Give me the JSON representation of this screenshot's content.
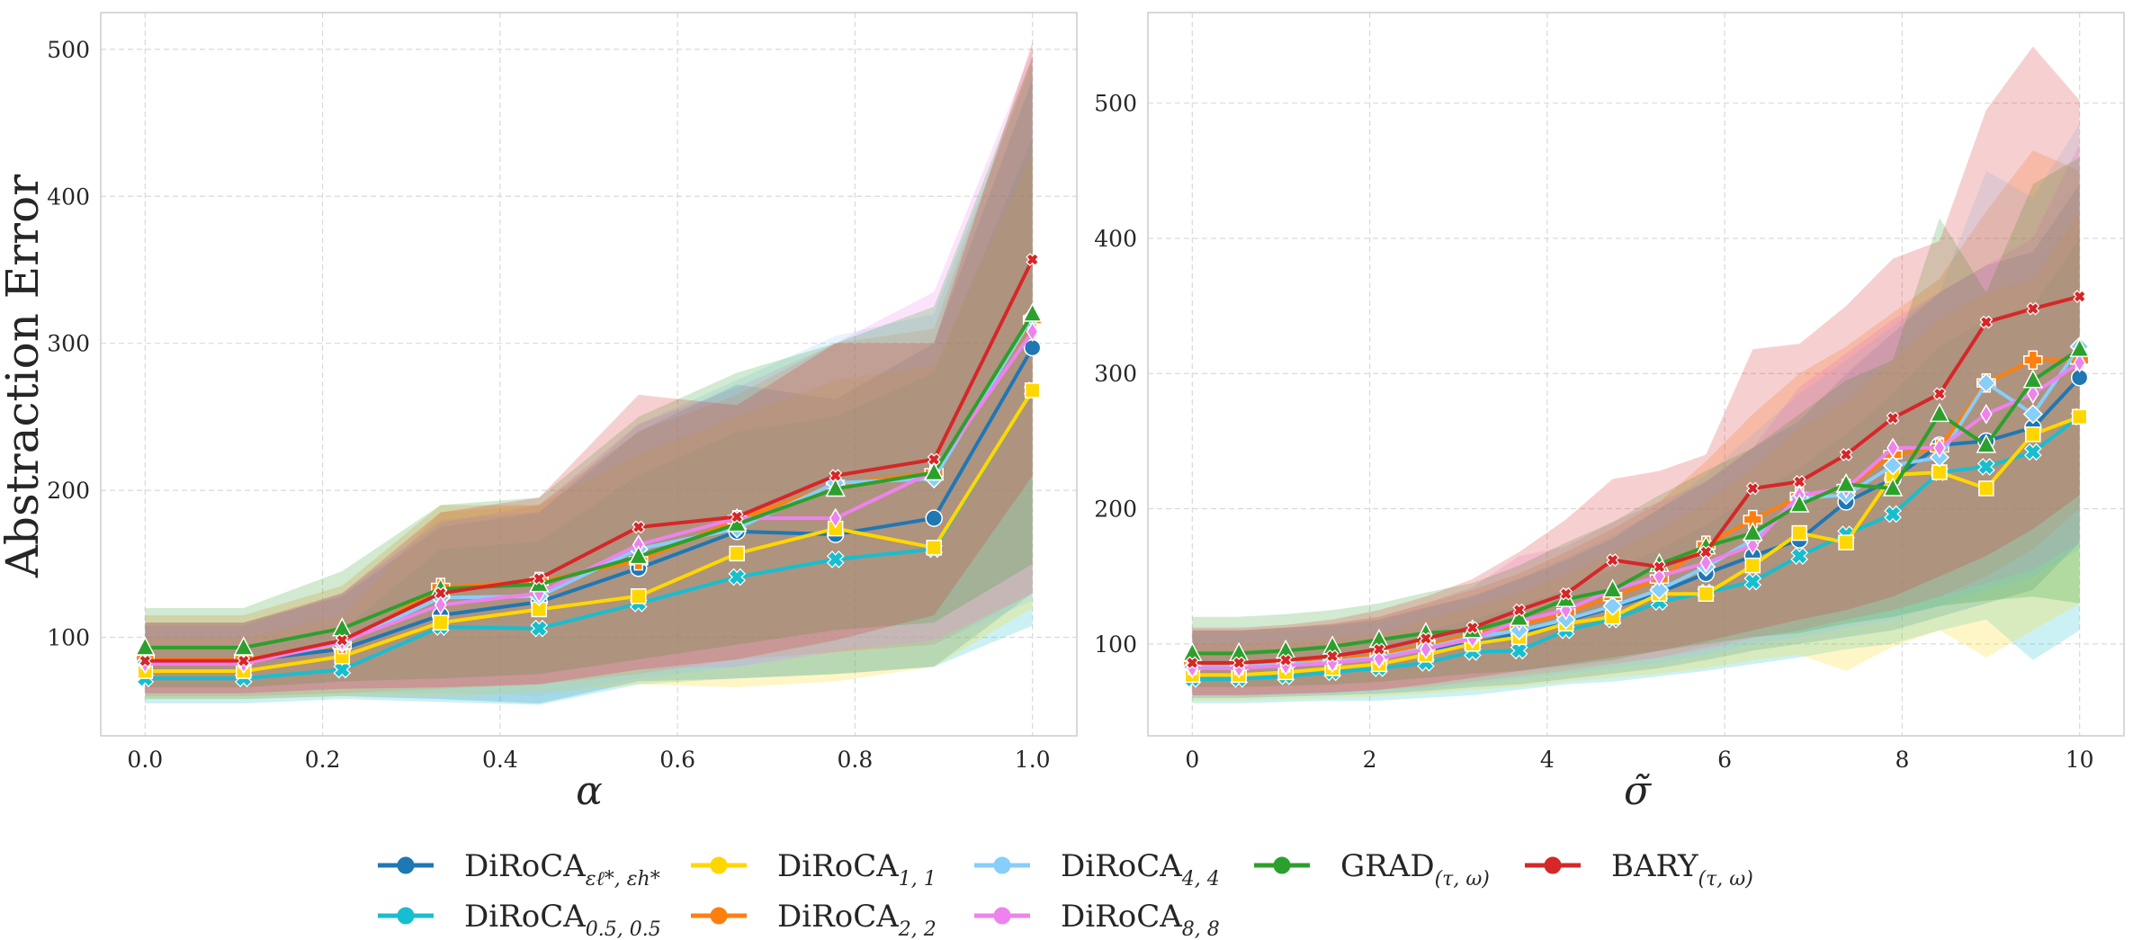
{
  "chart_data": [
    {
      "type": "line",
      "xlabel": "α",
      "ylabel": "Abstraction Error",
      "xlim": [
        -0.05,
        1.05
      ],
      "ylim": [
        33,
        525
      ],
      "xticks": [
        0.0,
        0.2,
        0.4,
        0.6,
        0.8,
        1.0
      ],
      "xtick_labels": [
        "0.0",
        "0.2",
        "0.4",
        "0.6",
        "0.8",
        "1.0"
      ],
      "yticks": [
        100,
        200,
        300,
        400,
        500
      ],
      "ytick_labels": [
        "100",
        "200",
        "300",
        "400",
        "500"
      ],
      "grid": true,
      "x": [
        0.0,
        0.111,
        0.222,
        0.333,
        0.444,
        0.556,
        0.667,
        0.778,
        0.889,
        1.0
      ],
      "series": [
        {
          "key": "diroca_eps",
          "values": [
            84,
            84,
            92,
            115,
            124,
            147,
            172,
            170,
            181,
            297
          ],
          "lower": [
            58,
            58,
            60,
            58,
            55,
            70,
            72,
            75,
            80,
            130
          ],
          "upper": [
            110,
            110,
            128,
            175,
            185,
            240,
            272,
            262,
            300,
            480
          ]
        },
        {
          "key": "diroca_05",
          "values": [
            72,
            72,
            78,
            107,
            106,
            123,
            141,
            153,
            160,
            268
          ],
          "lower": [
            55,
            55,
            58,
            56,
            54,
            68,
            72,
            75,
            80,
            108
          ],
          "upper": [
            95,
            95,
            105,
            160,
            165,
            210,
            240,
            250,
            280,
            440
          ]
        },
        {
          "key": "diroca_11",
          "values": [
            77,
            77,
            87,
            110,
            119,
            128,
            157,
            174,
            161,
            268
          ],
          "lower": [
            58,
            58,
            60,
            60,
            62,
            68,
            66,
            70,
            80,
            120
          ],
          "upper": [
            100,
            100,
            115,
            185,
            190,
            225,
            250,
            275,
            285,
            430
          ]
        },
        {
          "key": "diroca_22",
          "values": [
            85,
            85,
            95,
            134,
            138,
            152,
            180,
            204,
            212,
            316
          ],
          "lower": [
            60,
            60,
            62,
            65,
            68,
            75,
            85,
            90,
            95,
            130
          ],
          "upper": [
            115,
            115,
            135,
            190,
            190,
            240,
            265,
            300,
            310,
            495
          ]
        },
        {
          "key": "diroca_44",
          "values": [
            83,
            83,
            96,
            127,
            128,
            160,
            174,
            205,
            208,
            318
          ],
          "lower": [
            60,
            60,
            62,
            62,
            60,
            72,
            80,
            92,
            95,
            125
          ],
          "upper": [
            108,
            108,
            130,
            180,
            185,
            245,
            275,
            305,
            320,
            490
          ]
        },
        {
          "key": "diroca_88",
          "values": [
            82,
            82,
            97,
            122,
            130,
            163,
            181,
            181,
            213,
            308
          ],
          "lower": [
            62,
            62,
            65,
            66,
            68,
            78,
            80,
            90,
            98,
            130
          ],
          "upper": [
            108,
            108,
            130,
            178,
            190,
            245,
            270,
            300,
            335,
            500
          ]
        },
        {
          "key": "grad",
          "values": [
            93,
            93,
            106,
            133,
            136,
            155,
            177,
            201,
            212,
            320
          ],
          "lower": [
            66,
            66,
            70,
            72,
            75,
            85,
            95,
            105,
            110,
            150
          ],
          "upper": [
            120,
            120,
            145,
            190,
            195,
            250,
            280,
            300,
            325,
            495
          ]
        },
        {
          "key": "bary",
          "values": [
            84,
            84,
            98,
            130,
            140,
            175,
            182,
            210,
            221,
            357
          ],
          "lower": [
            62,
            62,
            65,
            66,
            68,
            78,
            85,
            98,
            115,
            210
          ],
          "upper": [
            110,
            110,
            130,
            185,
            195,
            265,
            258,
            300,
            300,
            505
          ]
        }
      ]
    },
    {
      "type": "line",
      "xlabel": "σ̃",
      "ylabel": "",
      "xlim": [
        -0.5,
        10.5
      ],
      "ylim": [
        32,
        567
      ],
      "xticks": [
        0,
        2,
        4,
        6,
        8,
        10
      ],
      "xtick_labels": [
        "0",
        "2",
        "4",
        "6",
        "8",
        "10"
      ],
      "yticks": [
        100,
        200,
        300,
        400,
        500
      ],
      "ytick_labels": [
        "100",
        "200",
        "300",
        "400",
        "500"
      ],
      "grid": true,
      "x": [
        0,
        0.526,
        1.053,
        1.579,
        2.105,
        2.632,
        3.158,
        3.684,
        4.211,
        4.737,
        5.263,
        5.789,
        6.316,
        6.842,
        7.368,
        7.895,
        8.421,
        8.947,
        9.474,
        10.0
      ],
      "series": [
        {
          "key": "diroca_eps",
          "values": [
            84,
            84,
            85,
            87,
            89,
            96,
            100,
            108,
            117,
            127,
            138,
            152,
            165,
            177,
            205,
            222,
            247,
            250,
            260,
            297
          ],
          "lower": [
            60,
            60,
            61,
            62,
            63,
            65,
            68,
            70,
            74,
            78,
            82,
            88,
            95,
            100,
            105,
            110,
            120,
            130,
            140,
            175
          ],
          "upper": [
            110,
            110,
            112,
            114,
            118,
            127,
            135,
            148,
            162,
            178,
            200,
            220,
            245,
            265,
            300,
            330,
            360,
            380,
            390,
            440
          ]
        },
        {
          "key": "diroca_05",
          "values": [
            74,
            74,
            76,
            79,
            82,
            86,
            94,
            95,
            110,
            118,
            131,
            138,
            146,
            165,
            181,
            196,
            227,
            231,
            242,
            268
          ],
          "lower": [
            56,
            56,
            57,
            58,
            58,
            60,
            62,
            66,
            70,
            72,
            76,
            80,
            85,
            90,
            96,
            100,
            110,
            118,
            88,
            110
          ],
          "upper": [
            95,
            95,
            97,
            100,
            104,
            110,
            118,
            128,
            140,
            155,
            170,
            188,
            210,
            230,
            255,
            285,
            320,
            340,
            350,
            400
          ]
        },
        {
          "key": "diroca_11",
          "values": [
            77,
            77,
            79,
            82,
            85,
            92,
            100,
            105,
            115,
            120,
            137,
            137,
            158,
            182,
            175,
            225,
            227,
            215,
            255,
            268
          ],
          "lower": [
            58,
            58,
            59,
            60,
            61,
            63,
            66,
            68,
            72,
            75,
            78,
            82,
            88,
            92,
            80,
            98,
            110,
            90,
            110,
            130
          ],
          "upper": [
            100,
            100,
            102,
            105,
            108,
            118,
            128,
            138,
            152,
            168,
            185,
            205,
            230,
            260,
            280,
            310,
            340,
            360,
            370,
            420
          ]
        },
        {
          "key": "diroca_22",
          "values": [
            84,
            84,
            86,
            88,
            92,
            99,
            107,
            114,
            123,
            135,
            148,
            173,
            192,
            209,
            215,
            240,
            245,
            293,
            310,
            310
          ],
          "lower": [
            62,
            62,
            63,
            64,
            66,
            68,
            72,
            76,
            80,
            85,
            90,
            98,
            105,
            110,
            118,
            125,
            135,
            150,
            170,
            200
          ],
          "upper": [
            110,
            110,
            112,
            115,
            120,
            130,
            140,
            152,
            168,
            185,
            205,
            235,
            270,
            300,
            320,
            345,
            370,
            420,
            465,
            450
          ]
        },
        {
          "key": "diroca_44",
          "values": [
            83,
            83,
            85,
            87,
            90,
            97,
            105,
            110,
            118,
            128,
            140,
            157,
            177,
            208,
            210,
            232,
            238,
            293,
            270,
            320
          ],
          "lower": [
            60,
            60,
            61,
            62,
            64,
            66,
            70,
            74,
            78,
            82,
            86,
            92,
            100,
            105,
            112,
            118,
            128,
            140,
            150,
            170
          ],
          "upper": [
            108,
            108,
            110,
            113,
            117,
            126,
            136,
            148,
            164,
            180,
            200,
            225,
            255,
            285,
            310,
            335,
            360,
            450,
            430,
            485
          ]
        },
        {
          "key": "diroca_88",
          "values": [
            82,
            82,
            84,
            86,
            89,
            96,
            104,
            117,
            125,
            140,
            150,
            160,
            173,
            210,
            215,
            245,
            245,
            270,
            285,
            308
          ],
          "lower": [
            62,
            62,
            63,
            64,
            66,
            70,
            74,
            78,
            82,
            86,
            90,
            96,
            104,
            110,
            118,
            125,
            135,
            145,
            155,
            175
          ],
          "upper": [
            110,
            110,
            112,
            115,
            120,
            130,
            142,
            165,
            172,
            190,
            205,
            220,
            245,
            290,
            315,
            340,
            360,
            380,
            400,
            470
          ]
        },
        {
          "key": "grad",
          "values": [
            93,
            93,
            95,
            98,
            103,
            108,
            110,
            119,
            133,
            140,
            159,
            172,
            182,
            203,
            218,
            215,
            270,
            247,
            295,
            318
          ],
          "lower": [
            68,
            68,
            69,
            70,
            72,
            75,
            78,
            80,
            84,
            88,
            95,
            100,
            105,
            108,
            115,
            120,
            128,
            132,
            135,
            130
          ],
          "upper": [
            120,
            120,
            122,
            125,
            130,
            138,
            145,
            158,
            175,
            190,
            210,
            228,
            245,
            270,
            295,
            310,
            415,
            360,
            440,
            460
          ]
        },
        {
          "key": "bary",
          "values": [
            86,
            86,
            88,
            91,
            96,
            104,
            112,
            125,
            137,
            162,
            157,
            168,
            215,
            220,
            240,
            267,
            285,
            338,
            348,
            357
          ],
          "lower": [
            62,
            62,
            63,
            64,
            66,
            70,
            75,
            80,
            85,
            90,
            95,
            102,
            110,
            118,
            125,
            135,
            150,
            165,
            185,
            210
          ],
          "upper": [
            112,
            112,
            114,
            118,
            125,
            135,
            148,
            168,
            192,
            222,
            228,
            240,
            318,
            322,
            350,
            385,
            398,
            495,
            542,
            502
          ]
        }
      ]
    }
  ],
  "legend": {
    "items": [
      {
        "key": "diroca_eps",
        "label": "DiRoCA",
        "sub": "εℓ*, εh*",
        "color": "#1f77b4",
        "marker": "circle"
      },
      {
        "key": "diroca_05",
        "label": "DiRoCA",
        "sub": "0.5, 0.5",
        "color": "#17becf",
        "marker": "x"
      },
      {
        "key": "diroca_11",
        "label": "DiRoCA",
        "sub": "1, 1",
        "color": "#ffd700",
        "marker": "square"
      },
      {
        "key": "diroca_22",
        "label": "DiRoCA",
        "sub": "2, 2",
        "color": "#ff7f0e",
        "marker": "plus"
      },
      {
        "key": "diroca_44",
        "label": "DiRoCA",
        "sub": "4, 4",
        "color": "#87cefa",
        "marker": "diamond"
      },
      {
        "key": "diroca_88",
        "label": "DiRoCA",
        "sub": "8, 8",
        "color": "#ee82ee",
        "marker": "thin-diamond"
      },
      {
        "key": "grad",
        "label": "GRAD",
        "sub": "(τ, ω)",
        "color": "#2ca02c",
        "marker": "triangle"
      },
      {
        "key": "bary",
        "label": "BARY",
        "sub": "(τ, ω)",
        "color": "#d62728",
        "marker": "xsmall"
      }
    ]
  }
}
